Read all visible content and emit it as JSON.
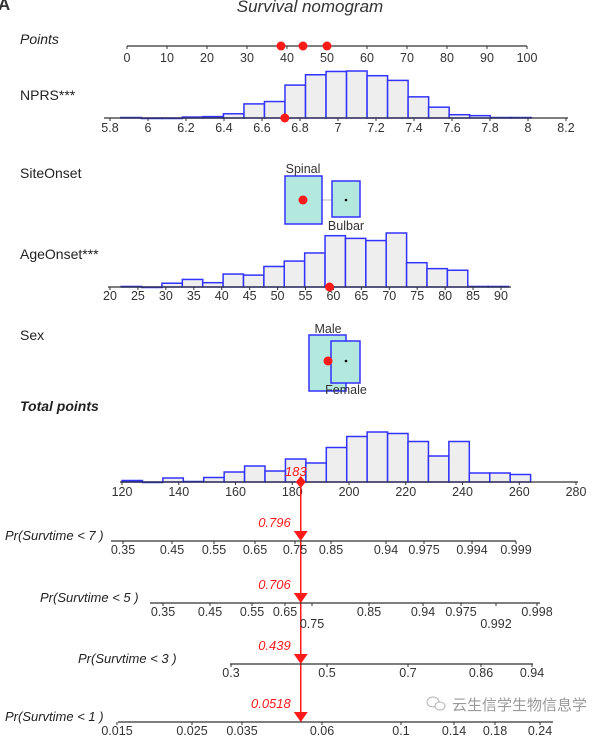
{
  "chart_data": {
    "type": "nomogram",
    "title": "Survival nomogram",
    "panel_label": "A",
    "rows": {
      "points": {
        "label": "Points",
        "range": [
          0,
          100
        ],
        "ticks": [
          "0",
          "10",
          "20",
          "30",
          "40",
          "50",
          "60",
          "70",
          "80",
          "90",
          "100"
        ],
        "selected_points": [
          38.5,
          44,
          50
        ]
      },
      "nprs": {
        "label": "NPRS***",
        "range": [
          5.8,
          8.2
        ],
        "ticks": [
          "5.8",
          "6",
          "6.2",
          "6.4",
          "6.6",
          "6.8",
          "7",
          "7.2",
          "7.4",
          "7.6",
          "7.8",
          "8",
          "8.2"
        ],
        "selected_value": 6.72,
        "histogram": {
          "start": 5.857,
          "bin_width": 0.108,
          "relative_heights": [
            0.01,
            0,
            0,
            0.02,
            0.03,
            0.09,
            0.3,
            0.35,
            0.7,
            0.92,
            0.99,
            1.0,
            0.9,
            0.8,
            0.45,
            0.23,
            0.07,
            0.05,
            0.01,
            0.01
          ]
        }
      },
      "site_onset": {
        "label": "SiteOnset",
        "levels": [
          "Spinal",
          "Bulbar"
        ],
        "selected": "Spinal"
      },
      "age_onset": {
        "label": "AgeOnset***",
        "range": [
          20,
          90
        ],
        "ticks": [
          "20",
          "25",
          "30",
          "35",
          "40",
          "45",
          "50",
          "55",
          "60",
          "65",
          "70",
          "75",
          "80",
          "85",
          "90"
        ],
        "selected_value": 59.3,
        "histogram": {
          "start": 22,
          "bin_width": 3.65,
          "relative_heights": [
            0.01,
            0,
            0.07,
            0.14,
            0.08,
            0.24,
            0.22,
            0.38,
            0.48,
            0.63,
            0.95,
            0.9,
            0.86,
            1.0,
            0.45,
            0.34,
            0.31,
            0.01,
            0.01
          ]
        }
      },
      "sex": {
        "label": "Sex",
        "levels": [
          "Male",
          "Female"
        ],
        "selected": "Male"
      },
      "total_points": {
        "label": "Total points",
        "range": [
          120,
          280
        ],
        "ticks": [
          "120",
          "140",
          "160",
          "180",
          "200",
          "220",
          "240",
          "260",
          "280"
        ],
        "selected_value": 183,
        "selected_label": "183",
        "histogram": {
          "start": 120,
          "bin_width": 7.2,
          "relative_heights": [
            0.03,
            0,
            0.08,
            0.01,
            0.09,
            0.2,
            0.32,
            0.22,
            0.46,
            0.38,
            0.69,
            0.91,
            1.0,
            0.97,
            0.81,
            0.52,
            0.81,
            0.18,
            0.18,
            0.15
          ]
        }
      },
      "probabilities": [
        {
          "label": "Pr(Survtime < 7 )",
          "value": "0.796",
          "ticks": [
            "0.35",
            "0.45",
            "0.55",
            "0.65",
            "0.75",
            "0.85",
            "0.94",
            "0.975",
            "0.994",
            "0.999"
          ]
        },
        {
          "label": "Pr(Survtime < 5 )",
          "value": "0.706",
          "ticks": [
            "0.35",
            "0.45",
            "0.55",
            "0.65",
            "0.75",
            "0.85",
            "0.94",
            "0.975",
            "0.992",
            "0.998"
          ]
        },
        {
          "label": "Pr(Survtime < 3 )",
          "value": "0.439",
          "ticks": [
            "0.3",
            "0.5",
            "0.7",
            "0.86",
            "0.94"
          ]
        },
        {
          "label": "Pr(Survtime < 1 )",
          "value": "0.0518",
          "ticks": [
            "0.015",
            "0.025",
            "0.035",
            "0.06",
            "0.1",
            "0.14",
            "0.18",
            "0.24"
          ]
        }
      ]
    },
    "colors": {
      "histogram_fill": "#eeeeee",
      "histogram_stroke": "#3333ff",
      "category_fill": "#b3e8df",
      "highlight": "#ff1a1a",
      "axis": "#333333"
    }
  },
  "watermark": {
    "icon": "wechat-icon",
    "text": "云生信学生物信息学"
  }
}
